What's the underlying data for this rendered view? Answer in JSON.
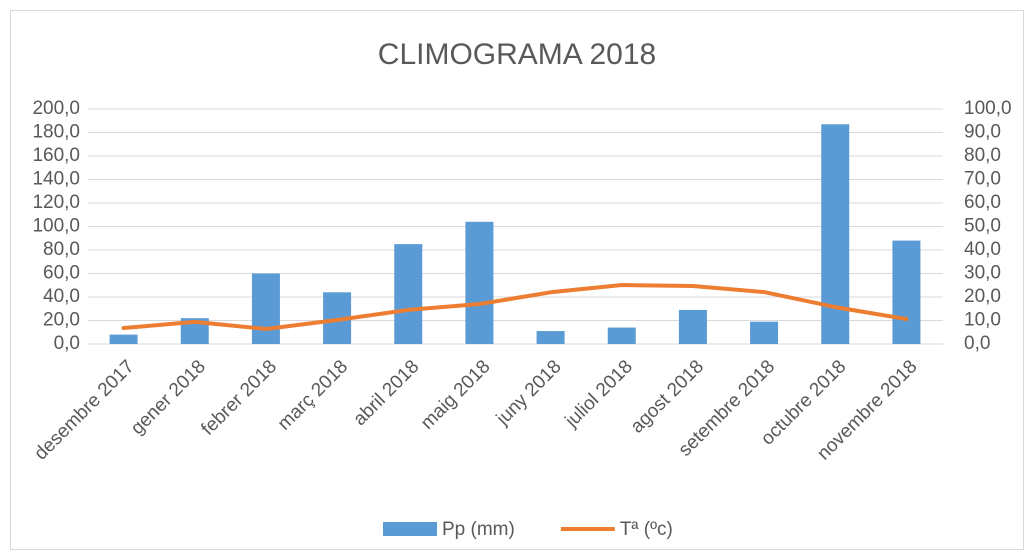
{
  "chart_data": {
    "type": "bar_line",
    "title": "CLIMOGRAMA 2018",
    "categories": [
      "desembre 2017",
      "gener 2018",
      "febrer 2018",
      "març 2018",
      "abril 2018",
      "maig 2018",
      "juny 2018",
      "juliol 2018",
      "agost 2018",
      "setembre 2018",
      "octubre 2018",
      "novembre 2018"
    ],
    "series": [
      {
        "name": "Pp (mm)",
        "type": "bar",
        "color": "#5b9bd5",
        "values": [
          8,
          22,
          60,
          44,
          85,
          104,
          11,
          14,
          29,
          19,
          187,
          88
        ]
      },
      {
        "name": "Tª (ºc)",
        "type": "line",
        "axis": "y2",
        "color": "#ed7d31",
        "values": [
          6.8,
          9.4,
          6.4,
          10.2,
          14.5,
          17,
          22,
          25.1,
          24.7,
          22.1,
          15.7,
          10.6
        ]
      }
    ],
    "ylim": [
      0,
      200
    ],
    "yticks": [
      {
        "value": 0,
        "label": "0,0"
      },
      {
        "value": 20,
        "label": "20,0"
      },
      {
        "value": 40,
        "label": "40,0"
      },
      {
        "value": 60,
        "label": "60,0"
      },
      {
        "value": 80,
        "label": "80,0"
      },
      {
        "value": 100,
        "label": "100,0"
      },
      {
        "value": 120,
        "label": "120,0"
      },
      {
        "value": 140,
        "label": "140,0"
      },
      {
        "value": 160,
        "label": "160,0"
      },
      {
        "value": 180,
        "label": "180,0"
      },
      {
        "value": 200,
        "label": "200,0"
      }
    ],
    "y2lim": [
      0,
      100
    ],
    "y2ticks": [
      {
        "value": 0,
        "label": "0,0"
      },
      {
        "value": 10,
        "label": "10,0"
      },
      {
        "value": 20,
        "label": "20,0"
      },
      {
        "value": 30,
        "label": "30,0"
      },
      {
        "value": 40,
        "label": "40,0"
      },
      {
        "value": 50,
        "label": "50,0"
      },
      {
        "value": 60,
        "label": "60,0"
      },
      {
        "value": 70,
        "label": "70,0"
      },
      {
        "value": 80,
        "label": "80,0"
      },
      {
        "value": 90,
        "label": "90,0"
      },
      {
        "value": 100,
        "label": "100,0"
      }
    ],
    "grid": true,
    "legend": "bottom"
  }
}
